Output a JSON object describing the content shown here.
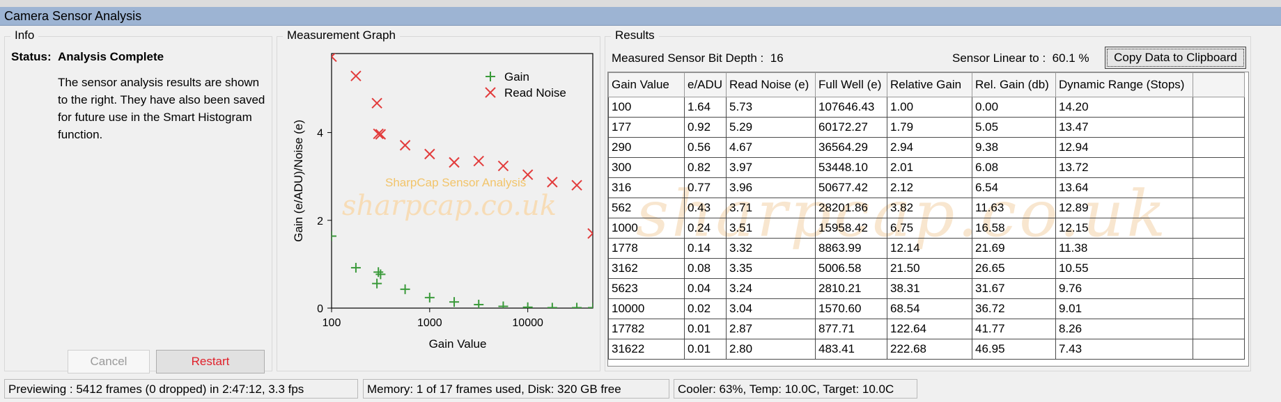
{
  "window": {
    "title": "Camera Sensor Analysis"
  },
  "info": {
    "group_title": "Info",
    "status_label": "Status:",
    "status_value": "Analysis Complete",
    "description": "The sensor analysis results are shown to the right. They have also been saved for future use in the Smart Histogram function.",
    "cancel_label": "Cancel",
    "restart_label": "Restart"
  },
  "graph": {
    "group_title": "Measurement Graph",
    "watermark_text": "SharpCap Sensor Analysis",
    "watermark_url": "sharpcap.co.uk"
  },
  "chart_data": {
    "type": "scatter",
    "xlabel": "Gain Value",
    "ylabel": "Gain (e/ADU)/Noise (e)",
    "x_scale": "log",
    "xlim": [
      100,
      46000
    ],
    "ylim": [
      0,
      5.8
    ],
    "x_ticks": [
      "100",
      "1000",
      "10000"
    ],
    "y_ticks": [
      "0",
      "2",
      "4"
    ],
    "legend_position": "top-right",
    "series": [
      {
        "name": "Gain",
        "marker": "plus",
        "color": "#3a9a3a",
        "x": [
          100,
          177,
          290,
          300,
          316,
          562,
          1000,
          1778,
          3162,
          5623,
          10000,
          17782,
          31622,
          46000
        ],
        "y": [
          1.64,
          0.92,
          0.56,
          0.82,
          0.77,
          0.43,
          0.24,
          0.14,
          0.08,
          0.04,
          0.02,
          0.01,
          0.01,
          0.01
        ]
      },
      {
        "name": "Read Noise",
        "marker": "x",
        "color": "#e23b3b",
        "x": [
          100,
          177,
          290,
          300,
          316,
          562,
          1000,
          1778,
          3162,
          5623,
          10000,
          17782,
          31622,
          46000
        ],
        "y": [
          5.73,
          5.29,
          4.67,
          3.97,
          3.96,
          3.71,
          3.51,
          3.32,
          3.35,
          3.24,
          3.04,
          2.87,
          2.8,
          1.7
        ]
      }
    ]
  },
  "results": {
    "group_title": "Results",
    "bit_depth_label": "Measured Sensor Bit Depth :",
    "bit_depth_value": "16",
    "linear_label": "Sensor Linear to :",
    "linear_value": "60.1 %",
    "copy_label": "Copy Data to Clipboard",
    "columns": [
      "Gain Value",
      "e/ADU",
      "Read Noise (e)",
      "Full Well (e)",
      "Relative Gain",
      "Rel. Gain (db)",
      "Dynamic Range (Stops)"
    ],
    "rows": [
      [
        "100",
        "1.64",
        "5.73",
        "107646.43",
        "1.00",
        "0.00",
        "14.20"
      ],
      [
        "177",
        "0.92",
        "5.29",
        "60172.27",
        "1.79",
        "5.05",
        "13.47"
      ],
      [
        "290",
        "0.56",
        "4.67",
        "36564.29",
        "2.94",
        "9.38",
        "12.94"
      ],
      [
        "300",
        "0.82",
        "3.97",
        "53448.10",
        "2.01",
        "6.08",
        "13.72"
      ],
      [
        "316",
        "0.77",
        "3.96",
        "50677.42",
        "2.12",
        "6.54",
        "13.64"
      ],
      [
        "562",
        "0.43",
        "3.71",
        "28201.86",
        "3.82",
        "11.63",
        "12.89"
      ],
      [
        "1000",
        "0.24",
        "3.51",
        "15958.42",
        "6.75",
        "16.58",
        "12.15"
      ],
      [
        "1778",
        "0.14",
        "3.32",
        "8863.99",
        "12.14",
        "21.69",
        "11.38"
      ],
      [
        "3162",
        "0.08",
        "3.35",
        "5006.58",
        "21.50",
        "26.65",
        "10.55"
      ],
      [
        "5623",
        "0.04",
        "3.24",
        "2810.21",
        "38.31",
        "31.67",
        "9.76"
      ],
      [
        "10000",
        "0.02",
        "3.04",
        "1570.60",
        "68.54",
        "36.72",
        "9.01"
      ],
      [
        "17782",
        "0.01",
        "2.87",
        "877.71",
        "122.64",
        "41.77",
        "8.26"
      ],
      [
        "31622",
        "0.01",
        "2.80",
        "483.41",
        "222.68",
        "46.95",
        "7.43"
      ]
    ]
  },
  "statusbar": {
    "preview": "Previewing : 5412 frames (0 dropped) in 2:47:12, 3.3 fps",
    "memory": "Memory: 1 of 17 frames used, Disk: 320 GB free",
    "cooler": "Cooler: 63%, Temp: 10.0C, Target: 10.0C"
  },
  "colors": {
    "title_bar": "#9db4d3",
    "gain_marker": "#3a9a3a",
    "noise_marker": "#e23b3b",
    "restart_text": "#e0202a",
    "watermark": "#f5c98a"
  }
}
